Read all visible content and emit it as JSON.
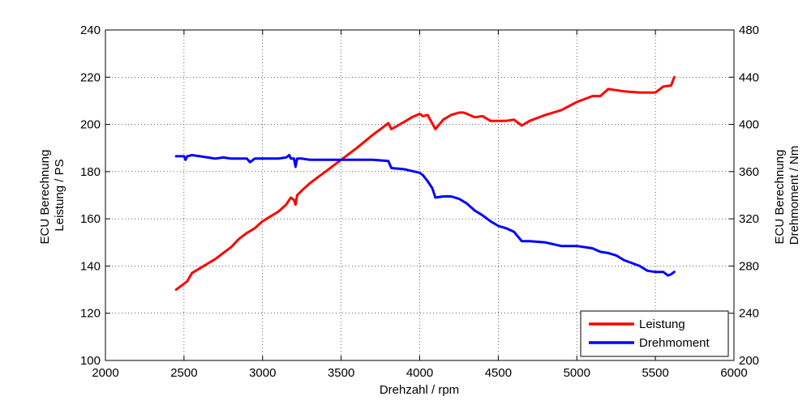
{
  "chart_data": {
    "type": "line",
    "xlabel": "Drehzahl / rpm",
    "ylabel_left": [
      "ECU Berechnung",
      "Leistung / PS"
    ],
    "ylabel_right": [
      "ECU Berechnung",
      "Drehmoment / Nm"
    ],
    "xlim": [
      2000,
      6000
    ],
    "ylim_left": [
      100,
      240
    ],
    "ylim_right": [
      200,
      480
    ],
    "xticks": [
      2000,
      2500,
      3000,
      3500,
      4000,
      4500,
      5000,
      5500,
      6000
    ],
    "yticks_left": [
      100,
      120,
      140,
      160,
      180,
      200,
      220,
      240
    ],
    "yticks_right": [
      200,
      240,
      280,
      320,
      360,
      400,
      440,
      480
    ],
    "grid": true,
    "legend_position": "bottom-right",
    "series": [
      {
        "name": "Leistung",
        "color": "#ff0000",
        "axis": "left",
        "x": [
          2450,
          2500,
          2510,
          2520,
          2550,
          2600,
          2700,
          2800,
          2850,
          2900,
          2950,
          3000,
          3050,
          3100,
          3150,
          3180,
          3200,
          3210,
          3220,
          3250,
          3300,
          3350,
          3400,
          3500,
          3600,
          3700,
          3750,
          3800,
          3820,
          3900,
          3950,
          4000,
          4020,
          4050,
          4100,
          4150,
          4200,
          4250,
          4280,
          4300,
          4350,
          4400,
          4450,
          4500,
          4550,
          4600,
          4650,
          4700,
          4800,
          4900,
          5000,
          5100,
          5150,
          5200,
          5250,
          5300,
          5400,
          5500,
          5550,
          5600,
          5620
        ],
        "y": [
          130,
          132.5,
          133,
          133.5,
          137,
          139,
          143,
          148,
          151.5,
          154,
          156,
          159,
          161,
          163,
          166,
          169,
          168,
          166,
          170,
          172,
          175,
          177.5,
          180,
          185,
          190,
          195.5,
          198,
          200.5,
          198,
          201,
          203,
          204.5,
          203.5,
          204,
          198,
          202,
          204,
          205,
          205,
          204.5,
          203,
          203.5,
          201.5,
          201.5,
          201.5,
          202,
          199.5,
          201.5,
          204,
          206,
          209.5,
          212,
          212,
          215,
          214.5,
          214,
          213.5,
          213.5,
          216,
          216.5,
          220
        ]
      },
      {
        "name": "Drehmoment",
        "color": "#0000ff",
        "axis": "right",
        "x": [
          2450,
          2500,
          2510,
          2520,
          2550,
          2600,
          2700,
          2750,
          2800,
          2900,
          2920,
          2950,
          3000,
          3100,
          3150,
          3170,
          3180,
          3200,
          3210,
          3220,
          3250,
          3300,
          3400,
          3500,
          3600,
          3700,
          3800,
          3820,
          3900,
          4000,
          4020,
          4050,
          4080,
          4100,
          4150,
          4200,
          4250,
          4300,
          4350,
          4400,
          4450,
          4500,
          4550,
          4600,
          4650,
          4700,
          4800,
          4900,
          5000,
          5050,
          5100,
          5150,
          5200,
          5250,
          5300,
          5400,
          5450,
          5500,
          5550,
          5580,
          5600,
          5620
        ],
        "y": [
          373,
          373,
          370,
          373,
          374,
          373,
          371,
          372,
          371,
          371,
          368,
          371,
          371,
          371,
          372,
          374,
          371,
          371,
          364,
          371,
          371,
          370,
          370,
          370,
          370,
          370,
          369,
          363,
          362,
          359,
          357,
          352,
          346,
          338,
          339,
          339,
          337,
          333,
          327,
          323,
          318,
          314,
          312,
          309,
          301,
          301,
          300,
          297,
          297,
          296,
          295,
          292,
          291,
          289,
          285,
          280,
          276,
          275,
          275,
          272,
          273,
          275
        ]
      }
    ]
  }
}
